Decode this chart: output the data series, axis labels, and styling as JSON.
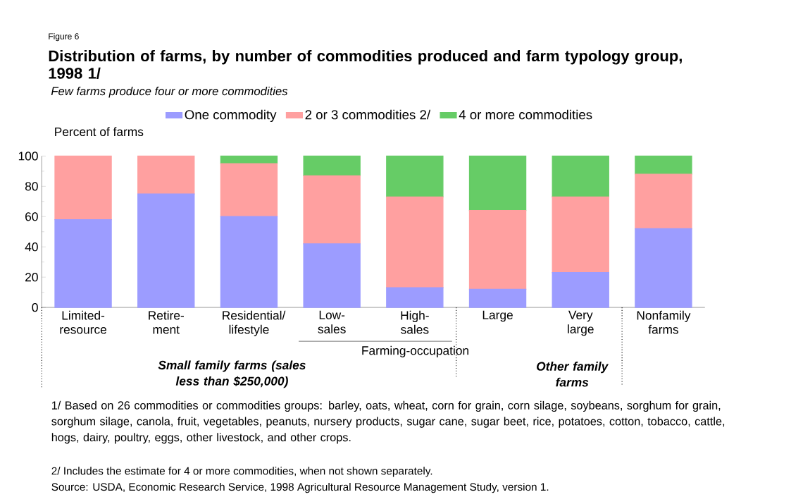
{
  "chart_data": {
    "type": "bar",
    "stacked": true,
    "title": "Distribution of farms, by number of commodities produced and farm typology group, 1998   1/",
    "subtitle": "Few farms produce four or more commodities",
    "ylabel": "Percent of farms",
    "categories": [
      "Limited- resource",
      "Retire- ment",
      "Residential/ lifestyle",
      "Low- sales",
      "High- sales",
      "Large",
      "Very large",
      "Nonfamily farms"
    ],
    "series": [
      {
        "name": "One commodity",
        "color": "#9c9cff",
        "values": [
          58,
          75,
          60,
          42,
          13,
          12,
          23,
          52
        ]
      },
      {
        "name": "2 or 3 commodities  2/",
        "color": "#ffa0a0",
        "values": [
          42,
          25,
          35,
          45,
          60,
          52,
          50,
          36
        ]
      },
      {
        "name": "4 or more commodities",
        "color": "#66cc66",
        "values": [
          0,
          0,
          5,
          13,
          27,
          36,
          27,
          12
        ]
      }
    ],
    "ylim": [
      0,
      100
    ],
    "yticks": [
      0,
      20,
      40,
      60,
      80,
      100
    ],
    "legend": "top",
    "grid": false,
    "annotations": [
      "Figure 6",
      "Farming-occupation",
      "Small family farms (sales less than $250,000)",
      "Other family farms",
      "1/ Based on 26 commodities or commodities groups: barley, oats, wheat, corn for grain,  corn silage, soybeans, sorghum for grain, sorghum silage, canola, fruit, vegetables, peanuts, nursery products, sugar cane, sugar beet, rice, potatoes, cotton, tobacco, cattle, hogs, dairy, poultry, eggs, other livestock, and other crops.",
      "2/ Includes the estimate for 4 or more commodities, when not shown separately.",
      "Source: USDA, Economic Research Service, 1998 Agricultural Resource Management Study, version 1."
    ]
  }
}
